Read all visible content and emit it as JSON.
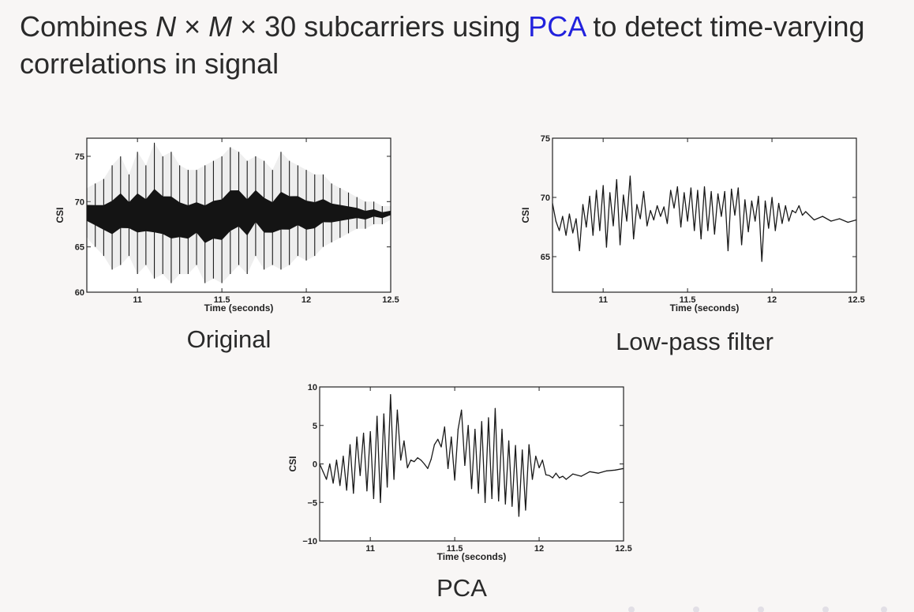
{
  "slide": {
    "heading_part1": "Combines ",
    "heading_var_n": "N",
    "heading_times1": " × ",
    "heading_var_m": "M",
    "heading_part2": " × 30 subcarriers using ",
    "heading_accent": "PCA",
    "heading_part3": " to detect time-varying correlations in signal",
    "accent_color": "#2222dd"
  },
  "chart_data": [
    {
      "id": "original",
      "type": "line",
      "caption": "Original",
      "xlabel": "Time (seconds)",
      "ylabel": "CSI",
      "xlim": [
        10.7,
        12.5
      ],
      "ylim": [
        60,
        77
      ],
      "xticks": [
        11,
        11.5,
        12,
        12.5
      ],
      "xtick_labels": [
        "11",
        "11.5",
        "12",
        "12.5"
      ],
      "yticks": [
        60,
        65,
        70,
        75
      ],
      "ytick_labels": [
        "60",
        "65",
        "70",
        "75"
      ],
      "grid": false,
      "series": [
        {
          "x": [
            10.7,
            10.75,
            10.8,
            10.85,
            10.9,
            10.95,
            11.0,
            11.05,
            11.1,
            11.15,
            11.2,
            11.25,
            11.3,
            11.35,
            11.4,
            11.45,
            11.5,
            11.55,
            11.6,
            11.65,
            11.7,
            11.75,
            11.8,
            11.85,
            11.9,
            11.95,
            12.0,
            12.05,
            12.1,
            12.15,
            12.2,
            12.25,
            12.3,
            12.35,
            12.4,
            12.45,
            12.5
          ],
          "y_min": [
            66,
            65,
            64,
            62.5,
            63,
            64,
            62,
            63,
            61.5,
            62,
            61,
            62,
            62,
            63,
            61,
            61.5,
            61,
            62,
            63,
            62,
            64,
            62.5,
            63,
            62.5,
            63,
            64,
            63.5,
            64,
            65,
            65.5,
            66,
            66.5,
            67,
            67,
            67.5,
            67.5,
            68
          ],
          "y_max": [
            71.5,
            72,
            72.5,
            74,
            75,
            73,
            75.5,
            74,
            76.5,
            75,
            75.5,
            74,
            73.5,
            73.5,
            74,
            74.5,
            75,
            76,
            75.5,
            74.5,
            75,
            74.5,
            73.5,
            75.5,
            74.5,
            74,
            73.5,
            73,
            73,
            72,
            71.5,
            71,
            70.5,
            70,
            70,
            69.5,
            69.5
          ]
        }
      ]
    },
    {
      "id": "low-pass",
      "type": "line",
      "caption": "Low-pass filter",
      "xlabel": "Time (seconds)",
      "ylabel": "CSI",
      "xlim": [
        10.7,
        12.5
      ],
      "ylim": [
        62,
        75
      ],
      "xticks": [
        11,
        11.5,
        12,
        12.5
      ],
      "xtick_labels": [
        "11",
        "11.5",
        "12",
        "12.5"
      ],
      "yticks": [
        65,
        70,
        75
      ],
      "ytick_labels": [
        "65",
        "70",
        "75"
      ],
      "grid": false,
      "series": [
        {
          "x": [
            10.7,
            10.72,
            10.74,
            10.76,
            10.78,
            10.8,
            10.82,
            10.84,
            10.86,
            10.88,
            10.9,
            10.92,
            10.94,
            10.96,
            10.98,
            11.0,
            11.02,
            11.04,
            11.06,
            11.08,
            11.1,
            11.12,
            11.14,
            11.16,
            11.18,
            11.2,
            11.22,
            11.24,
            11.26,
            11.28,
            11.3,
            11.32,
            11.34,
            11.36,
            11.38,
            11.4,
            11.42,
            11.44,
            11.46,
            11.48,
            11.5,
            11.52,
            11.54,
            11.56,
            11.58,
            11.6,
            11.62,
            11.64,
            11.66,
            11.68,
            11.7,
            11.72,
            11.74,
            11.76,
            11.78,
            11.8,
            11.82,
            11.84,
            11.86,
            11.88,
            11.9,
            11.92,
            11.94,
            11.96,
            11.98,
            12.0,
            12.02,
            12.04,
            12.06,
            12.08,
            12.1,
            12.12,
            12.14,
            12.16,
            12.18,
            12.2,
            12.25,
            12.3,
            12.35,
            12.4,
            12.45,
            12.5
          ],
          "y": [
            69.5,
            68,
            67.2,
            68.4,
            66.8,
            68.6,
            67,
            68.2,
            65.5,
            69.4,
            67.5,
            70.1,
            66.8,
            70.6,
            67.2,
            71,
            65.8,
            70.4,
            67.6,
            71.5,
            66,
            70.2,
            68,
            71.8,
            66.5,
            69.4,
            68.2,
            70.5,
            67.6,
            68.9,
            68.1,
            69.3,
            68.4,
            69.2,
            67.8,
            70.6,
            69.1,
            70.9,
            67.5,
            70.4,
            68,
            70.8,
            67.2,
            70.6,
            66.5,
            70.9,
            67.2,
            70.5,
            66.9,
            70.3,
            68.4,
            70.5,
            65.5,
            70.7,
            68.5,
            70.8,
            66,
            69.8,
            67.1,
            69.7,
            68,
            70.1,
            64.6,
            69.7,
            67.4,
            70,
            67.2,
            69.5,
            67.8,
            69.3,
            68,
            68.9,
            68.7,
            69.3,
            68.5,
            68.8,
            68.1,
            68.4,
            68,
            68.2,
            67.9,
            68.1
          ]
        }
      ]
    },
    {
      "id": "pca",
      "type": "line",
      "caption": "PCA",
      "xlabel": "Time (seconds)",
      "ylabel": "CSI",
      "xlim": [
        10.7,
        12.5
      ],
      "ylim": [
        -10,
        10
      ],
      "xticks": [
        11,
        11.5,
        12,
        12.5
      ],
      "xtick_labels": [
        "11",
        "11.5",
        "12",
        "12.5"
      ],
      "yticks": [
        -10,
        -5,
        0,
        5,
        10
      ],
      "ytick_labels": [
        "−10",
        "−5",
        "0",
        "5",
        "10"
      ],
      "grid": false,
      "series": [
        {
          "x": [
            10.7,
            10.72,
            10.74,
            10.76,
            10.78,
            10.8,
            10.82,
            10.84,
            10.86,
            10.88,
            10.9,
            10.92,
            10.94,
            10.96,
            10.98,
            11.0,
            11.02,
            11.04,
            11.06,
            11.08,
            11.1,
            11.12,
            11.14,
            11.16,
            11.18,
            11.2,
            11.22,
            11.24,
            11.26,
            11.28,
            11.3,
            11.32,
            11.34,
            11.36,
            11.38,
            11.4,
            11.42,
            11.44,
            11.46,
            11.48,
            11.5,
            11.52,
            11.54,
            11.56,
            11.58,
            11.6,
            11.62,
            11.64,
            11.66,
            11.68,
            11.7,
            11.72,
            11.74,
            11.76,
            11.78,
            11.8,
            11.82,
            11.84,
            11.86,
            11.88,
            11.9,
            11.92,
            11.94,
            11.96,
            11.98,
            12.0,
            12.02,
            12.04,
            12.06,
            12.08,
            12.1,
            12.12,
            12.14,
            12.16,
            12.2,
            12.25,
            12.3,
            12.35,
            12.4,
            12.45,
            12.5
          ],
          "y": [
            0,
            -1,
            -2,
            0,
            -2.5,
            0.5,
            -2.8,
            1,
            -3.4,
            2.5,
            -3.8,
            3.5,
            -1.5,
            4,
            -3.5,
            4.2,
            -4.5,
            6.2,
            -5,
            6.5,
            -3,
            9,
            -2,
            7,
            0.5,
            3,
            -0.5,
            0.5,
            0.3,
            0.8,
            0.5,
            0,
            -0.6,
            0.6,
            2.5,
            3.2,
            2.2,
            4.8,
            -0.6,
            3.5,
            -2.1,
            4.5,
            7,
            -0.2,
            5,
            -3.2,
            4.5,
            -3.8,
            5.5,
            -5,
            6,
            -4.5,
            7.2,
            -4.8,
            4.5,
            -5.2,
            3,
            -5.5,
            2.4,
            -6.8,
            1.8,
            -6,
            2.5,
            -2,
            1,
            -0.5,
            0.5,
            -1.4,
            -1.5,
            -1.8,
            -1.2,
            -1.8,
            -1.6,
            -2,
            -1.3,
            -1.6,
            -1,
            -1.2,
            -0.9,
            -0.8,
            -0.6
          ]
        }
      ]
    }
  ]
}
